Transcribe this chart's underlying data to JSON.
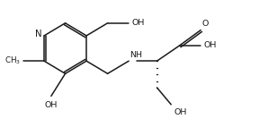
{
  "bg_color": "#ffffff",
  "line_color": "#1a1a1a",
  "line_width": 1.1,
  "font_size": 6.8,
  "fig_width": 2.98,
  "fig_height": 1.52,
  "dpi": 100,
  "xlim": [
    0,
    9.0
  ],
  "ylim": [
    0,
    4.8
  ]
}
